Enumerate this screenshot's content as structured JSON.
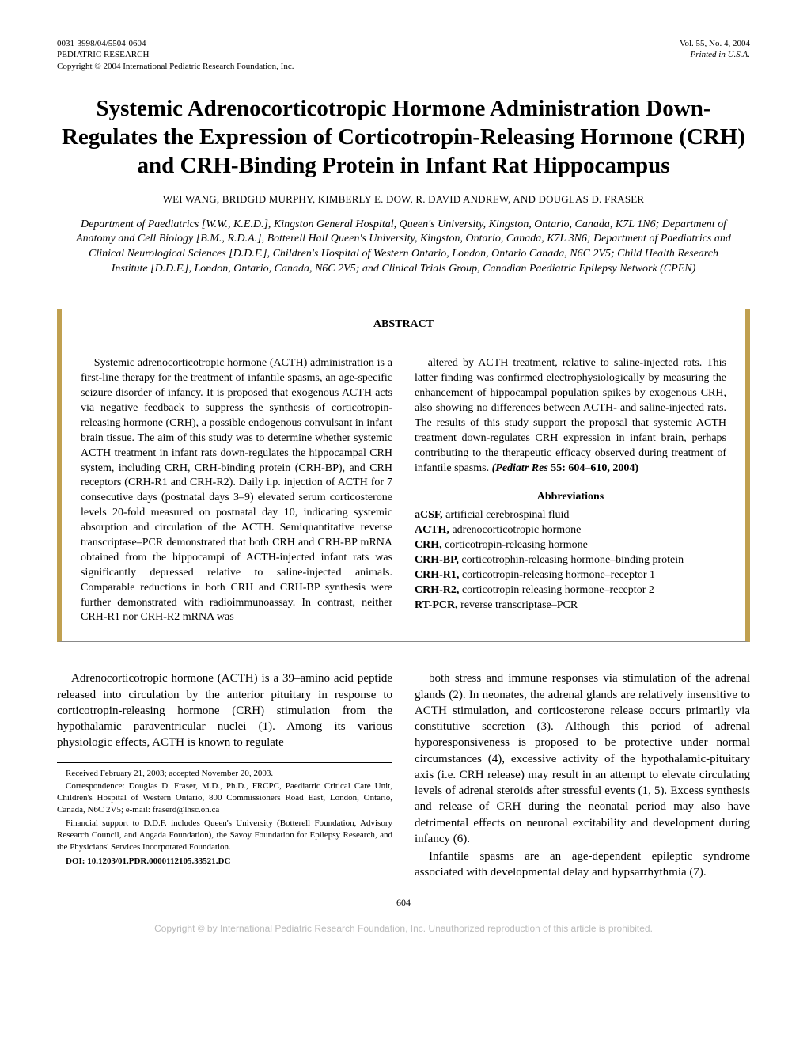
{
  "masthead": {
    "left_line1": "0031-3998/04/5504-0604",
    "left_line2": "PEDIATRIC RESEARCH",
    "left_line3": "Copyright © 2004 International Pediatric Research Foundation, Inc.",
    "right_line1": "Vol. 55, No. 4, 2004",
    "right_line2": "Printed in U.S.A."
  },
  "title": "Systemic Adrenocorticotropic Hormone Administration Down-Regulates the Expression of Corticotropin-Releasing Hormone (CRH) and CRH-Binding Protein in Infant Rat Hippocampus",
  "authors": "WEI WANG, BRIDGID MURPHY, KIMBERLY E. DOW, R. DAVID ANDREW, AND DOUGLAS D. FRASER",
  "affiliations": "Department of Paediatrics [W.W., K.E.D.], Kingston General Hospital, Queen's University, Kingston, Ontario, Canada, K7L 1N6; Department of Anatomy and Cell Biology [B.M., R.D.A.], Botterell Hall Queen's University, Kingston, Ontario, Canada, K7L 3N6; Department of Paediatrics and Clinical Neurological Sciences [D.D.F.], Children's Hospital of Western Ontario, London, Ontario Canada, N6C 2V5; Child Health Research Institute [D.D.F.], London, Ontario, Canada, N6C 2V5; and Clinical Trials Group, Canadian Paediatric Epilepsy Network (CPEN)",
  "abstract": {
    "header": "ABSTRACT",
    "left": "Systemic adrenocorticotropic hormone (ACTH) administration is a first-line therapy for the treatment of infantile spasms, an age-specific seizure disorder of infancy. It is proposed that exogenous ACTH acts via negative feedback to suppress the synthesis of corticotropin-releasing hormone (CRH), a possible endogenous convulsant in infant brain tissue. The aim of this study was to determine whether systemic ACTH treatment in infant rats down-regulates the hippocampal CRH system, including CRH, CRH-binding protein (CRH-BP), and CRH receptors (CRH-R1 and CRH-R2). Daily i.p. injection of ACTH for 7 consecutive days (postnatal days 3–9) elevated serum corticosterone levels 20-fold measured on postnatal day 10, indicating systemic absorption and circulation of the ACTH. Semiquantitative reverse transcriptase–PCR demonstrated that both CRH and CRH-BP mRNA obtained from the hippocampi of ACTH-injected infant rats was significantly depressed relative to saline-injected animals. Comparable reductions in both CRH and CRH-BP synthesis were further demonstrated with radioimmunoassay. In contrast, neither CRH-R1 nor CRH-R2 mRNA was",
    "right_top": "altered by ACTH treatment, relative to saline-injected rats. This latter finding was confirmed electrophysiologically by measuring the enhancement of hippocampal population spikes by exogenous CRH, also showing no differences between ACTH- and saline-injected rats. The results of this study support the proposal that systemic ACTH treatment down-regulates CRH expression in infant brain, perhaps contributing to the therapeutic efficacy observed during treatment of infantile spasms. ",
    "cite_journal": "(Pediatr Res",
    "cite_rest": " 55: 604–610, 2004)",
    "abbrev_header": "Abbreviations",
    "abbreviations": [
      {
        "term": "aCSF,",
        "def": " artificial cerebrospinal fluid"
      },
      {
        "term": "ACTH,",
        "def": " adrenocorticotropic hormone"
      },
      {
        "term": "CRH,",
        "def": " corticotropin-releasing hormone"
      },
      {
        "term": "CRH-BP,",
        "def": " corticotrophin-releasing hormone–binding protein"
      },
      {
        "term": "CRH-R1,",
        "def": " corticotropin-releasing hormone–receptor 1"
      },
      {
        "term": "CRH-R2,",
        "def": " corticotropin releasing hormone–receptor 2"
      },
      {
        "term": "RT-PCR,",
        "def": " reverse transcriptase–PCR"
      }
    ]
  },
  "body": {
    "left": "Adrenocorticotropic hormone (ACTH) is a 39–amino acid peptide released into circulation by the anterior pituitary in response to corticotropin-releasing hormone (CRH) stimulation from the hypothalamic paraventricular nuclei (1). Among its various physiologic effects, ACTH is known to regulate",
    "right1": "both stress and immune responses via stimulation of the adrenal glands (2). In neonates, the adrenal glands are relatively insensitive to ACTH stimulation, and corticosterone release occurs primarily via constitutive secretion (3). Although this period of adrenal hyporesponsiveness is proposed to be protective under normal circumstances (4), excessive activity of the hypothalamic-pituitary axis (i.e. CRH release) may result in an attempt to elevate circulating levels of adrenal steroids after stressful events (1, 5). Excess synthesis and release of CRH during the neonatal period may also have detrimental effects on neuronal excitability and development during infancy (6).",
    "right2": "Infantile spasms are an age-dependent epileptic syndrome associated with developmental delay and hypsarrhythmia (7)."
  },
  "footnotes": {
    "received": "Received February 21, 2003; accepted November 20, 2003.",
    "correspondence": "Correspondence: Douglas D. Fraser, M.D., Ph.D., FRCPC, Paediatric Critical Care Unit, Children's Hospital of Western Ontario, 800 Commissioners Road East, London, Ontario, Canada, N6C 2V5; e-mail: fraserd@lhsc.on.ca",
    "financial": "Financial support to D.D.F. includes Queen's University (Botterell Foundation, Advisory Research Council, and Angada Foundation), the Savoy Foundation for Epilepsy Research, and the Physicians' Services Incorporated Foundation.",
    "doi": "DOI: 10.1203/01.PDR.0000112105.33521.DC"
  },
  "page_number": "604",
  "footer_copy": "Copyright © by International Pediatric Research Foundation, Inc. Unauthorized reproduction of this article is prohibited."
}
